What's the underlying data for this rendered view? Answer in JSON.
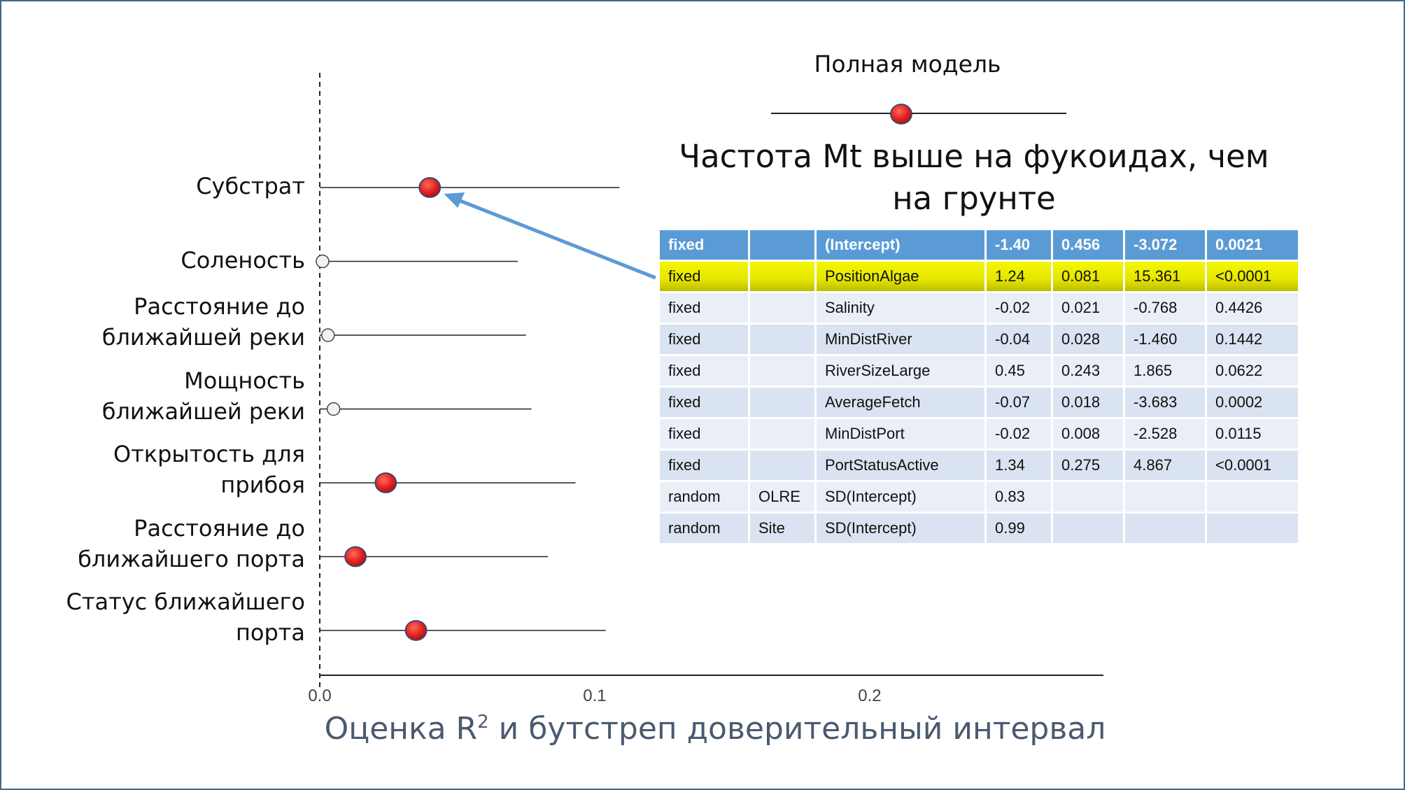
{
  "chart_data": {
    "type": "scatter",
    "title": "",
    "xlabel_main": "Оценка R",
    "xlabel_sup": "2",
    "xlabel_rest": " и бутстреп доверительный интервал",
    "xlim": [
      0,
      0.285
    ],
    "xticks": [
      "0.0",
      "0.1",
      "0.2"
    ],
    "xtick_values": [
      0.0,
      0.1,
      0.2
    ],
    "reference_line": 0.0,
    "categories": [
      "Субстрат",
      "Соленость",
      "Расстояние до\nближайшей реки",
      "Мощность\nближайшей реки",
      "Открытость для\nприбоя",
      "Расстояние до\nближайшего порта",
      "Статус ближайшего\nпорта"
    ],
    "points": [
      {
        "estimate": 0.04,
        "ci_low": 0.0,
        "ci_high": 0.109,
        "significant": true
      },
      {
        "estimate": 0.001,
        "ci_low": 0.0,
        "ci_high": 0.072,
        "significant": false
      },
      {
        "estimate": 0.003,
        "ci_low": 0.0,
        "ci_high": 0.075,
        "significant": false
      },
      {
        "estimate": 0.005,
        "ci_low": 0.0,
        "ci_high": 0.077,
        "significant": false
      },
      {
        "estimate": 0.024,
        "ci_low": 0.0,
        "ci_high": 0.093,
        "significant": true
      },
      {
        "estimate": 0.013,
        "ci_low": 0.0,
        "ci_high": 0.083,
        "significant": true
      },
      {
        "estimate": 0.035,
        "ci_low": 0.0,
        "ci_high": 0.104,
        "significant": true
      }
    ],
    "legend": {
      "label": "Полная модель",
      "placement": "top-right"
    },
    "colors": {
      "significant_fill": "#e02020",
      "nonsignificant_fill": "#f2f2f2",
      "arrow": "#5b9bd5",
      "line": "#222222"
    }
  },
  "annotation": {
    "text": "Частота Mt выше на фукоидах, чем на грунте",
    "arrow_target_category": 0
  },
  "table": {
    "rows": [
      [
        "fixed",
        "",
        "(Intercept)",
        "-1.40",
        "0.456",
        "-3.072",
        "0.0021"
      ],
      [
        "fixed",
        "",
        "PositionAlgae",
        "1.24",
        "0.081",
        "15.361",
        "<0.0001"
      ],
      [
        "fixed",
        "",
        "Salinity",
        "-0.02",
        "0.021",
        "-0.768",
        "0.4426"
      ],
      [
        "fixed",
        "",
        "MinDistRiver",
        "-0.04",
        "0.028",
        "-1.460",
        "0.1442"
      ],
      [
        "fixed",
        "",
        "RiverSizeLarge",
        "0.45",
        "0.243",
        "1.865",
        "0.0622"
      ],
      [
        "fixed",
        "",
        "AverageFetch",
        "-0.07",
        "0.018",
        "-3.683",
        "0.0002"
      ],
      [
        "fixed",
        "",
        "MinDistPort",
        "-0.02",
        "0.008",
        "-2.528",
        "0.0115"
      ],
      [
        "fixed",
        "",
        "PortStatusActive",
        "1.34",
        "0.275",
        "4.867",
        "<0.0001"
      ],
      [
        "random",
        "OLRE",
        "SD(Intercept)",
        "0.83",
        "",
        "",
        ""
      ],
      [
        "random",
        "Site",
        "SD(Intercept)",
        "0.99",
        "",
        "",
        ""
      ]
    ],
    "header_row": 0,
    "highlight_row": 1
  }
}
